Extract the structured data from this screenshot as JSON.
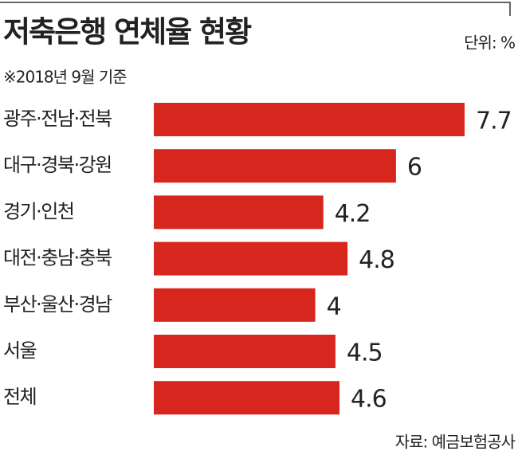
{
  "chart_data": {
    "type": "bar",
    "orientation": "horizontal",
    "title": "저축은행 연체율 현황",
    "unit": "단위: %",
    "subtitle": "※2018년 9월 기준",
    "source": "자료: 예금보험공사",
    "categories": [
      "광주·전남·전북",
      "대구·경북·강원",
      "경기·인천",
      "대전·충남·충북",
      "부산·울산·경남",
      "서울",
      "전체"
    ],
    "values": [
      7.7,
      6,
      4.2,
      4.8,
      4,
      4.5,
      4.6
    ],
    "color": "#d7261e"
  }
}
